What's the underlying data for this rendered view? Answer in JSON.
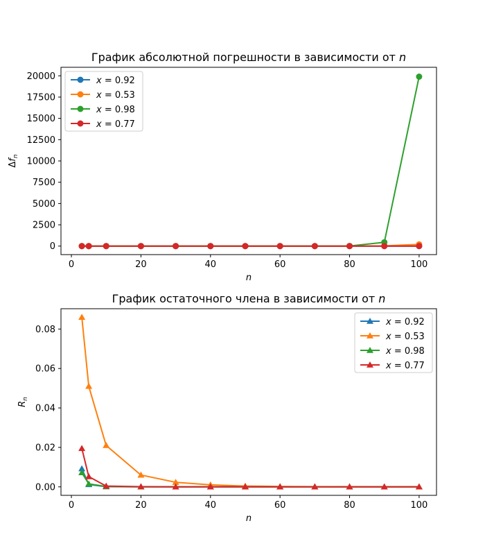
{
  "chart_data": [
    {
      "type": "line",
      "title": "График абсолютной погрешности в зависимости от ",
      "title_var": "n",
      "xlabel": "n",
      "ylabel": "Δf",
      "ylabel_sub": "n",
      "xlim": [
        -3,
        105
      ],
      "ylim": [
        -1000,
        21000
      ],
      "xticks": [
        0,
        20,
        40,
        60,
        80,
        100
      ],
      "yticks": [
        0,
        2500,
        5000,
        7500,
        10000,
        12500,
        15000,
        17500,
        20000
      ],
      "marker": "circle",
      "legend_position": "top-left",
      "x": [
        3,
        5,
        10,
        20,
        30,
        40,
        50,
        60,
        70,
        80,
        90,
        100
      ],
      "series": [
        {
          "name": "x = 0.92",
          "label_var": "x",
          "label_val": " = 0.92",
          "color": "#1f77b4",
          "values": [
            0,
            0,
            0,
            0,
            0,
            0,
            0,
            0,
            0,
            0,
            0,
            0
          ]
        },
        {
          "name": "x = 0.53",
          "label_var": "x",
          "label_val": " = 0.53",
          "color": "#ff7f0e",
          "values": [
            0,
            0,
            0,
            0,
            0,
            0,
            0,
            0,
            0,
            0,
            30,
            200
          ]
        },
        {
          "name": "x = 0.98",
          "label_var": "x",
          "label_val": " = 0.98",
          "color": "#2ca02c",
          "values": [
            0,
            0,
            0,
            0,
            0,
            0,
            0,
            0,
            0,
            10,
            450,
            19900
          ]
        },
        {
          "name": "x = 0.77",
          "label_var": "x",
          "label_val": " = 0.77",
          "color": "#d62728",
          "values": [
            0,
            0,
            0,
            0,
            0,
            0,
            0,
            0,
            0,
            0,
            0,
            5
          ]
        }
      ]
    },
    {
      "type": "line",
      "title": "График остаточного члена в зависимости от ",
      "title_var": "n",
      "xlabel": "n",
      "ylabel": "R",
      "ylabel_sub": "n",
      "xlim": [
        -3,
        105
      ],
      "ylim": [
        -0.0043,
        0.0903
      ],
      "xticks": [
        0,
        20,
        40,
        60,
        80,
        100
      ],
      "yticks": [
        0.0,
        0.02,
        0.04,
        0.06,
        0.08
      ],
      "ytick_decimals": 2,
      "marker": "triangle",
      "legend_position": "top-right",
      "x": [
        3,
        5,
        10,
        20,
        30,
        40,
        50,
        60,
        70,
        80,
        90,
        100
      ],
      "series": [
        {
          "name": "x = 0.92",
          "label_var": "x",
          "label_val": " = 0.92",
          "color": "#1f77b4",
          "values": [
            0.0092,
            0.0012,
            0.0001,
            0,
            0,
            0,
            0,
            0,
            0,
            0,
            0,
            0
          ]
        },
        {
          "name": "x = 0.53",
          "label_var": "x",
          "label_val": " = 0.53",
          "color": "#ff7f0e",
          "values": [
            0.086,
            0.051,
            0.021,
            0.006,
            0.0023,
            0.001,
            0.0004,
            0.0002,
            0.0001,
            5e-05,
            2e-05,
            1e-05
          ]
        },
        {
          "name": "x = 0.98",
          "label_var": "x",
          "label_val": " = 0.98",
          "color": "#2ca02c",
          "values": [
            0.0072,
            0.0015,
            0.0002,
            0,
            0,
            0,
            0,
            0,
            0,
            0,
            0,
            0
          ]
        },
        {
          "name": "x = 0.77",
          "label_var": "x",
          "label_val": " = 0.77",
          "color": "#d62728",
          "values": [
            0.0195,
            0.0052,
            0.0004,
            0.0001,
            0,
            0,
            0,
            0,
            0,
            0,
            0,
            0
          ]
        }
      ]
    }
  ]
}
